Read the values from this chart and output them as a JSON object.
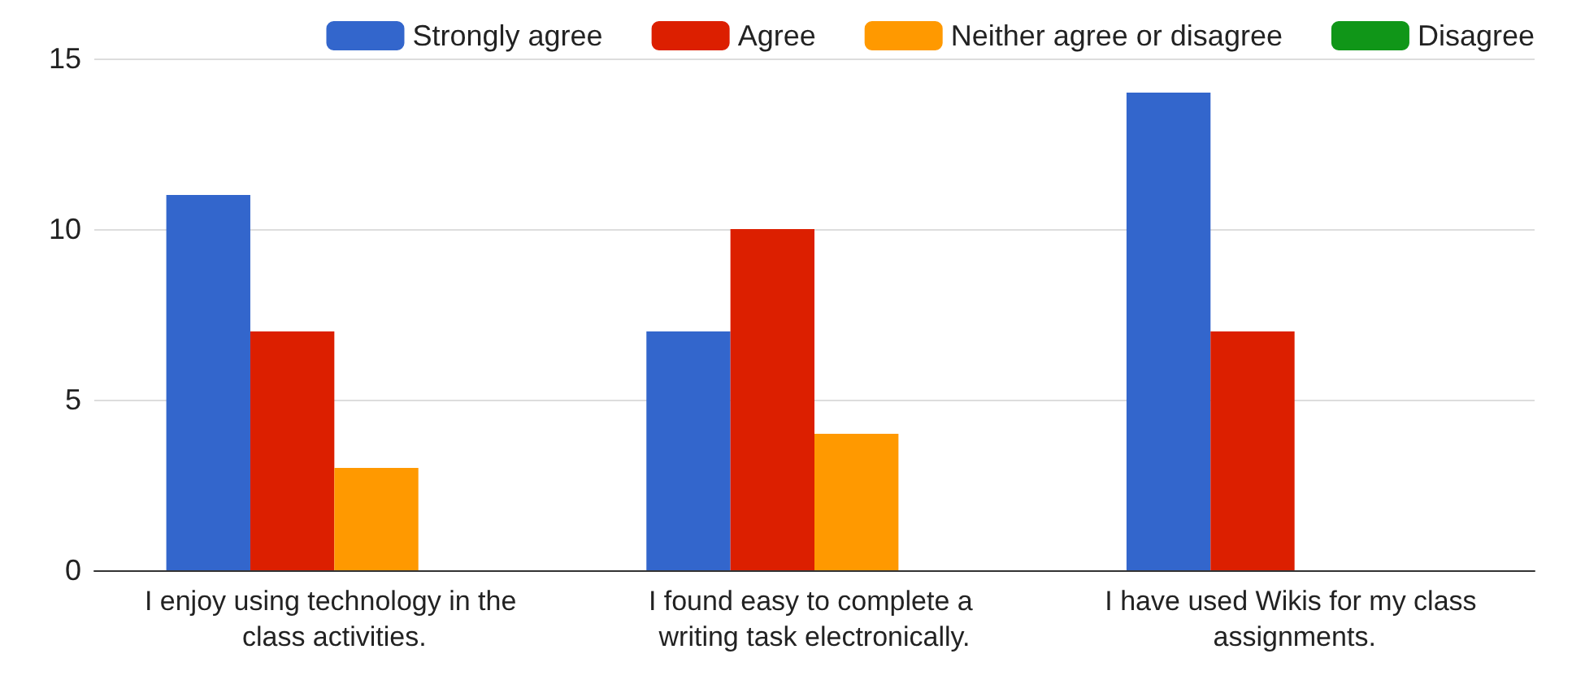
{
  "chart_data": {
    "type": "bar",
    "categories": [
      "I enjoy using technology in the class activities.",
      "I found easy to complete a writing task electronically.",
      "I have used Wikis for my class assignments."
    ],
    "series": [
      {
        "name": "Strongly agree",
        "color": "#3366cc",
        "values": [
          11,
          7,
          14
        ]
      },
      {
        "name": "Agree",
        "color": "#dc1f00",
        "values": [
          7,
          10,
          7
        ]
      },
      {
        "name": "Neither agree or disagree",
        "color": "#ff9900",
        "values": [
          3,
          4,
          0
        ]
      },
      {
        "name": "Disagree",
        "color": "#109618",
        "values": [
          0,
          0,
          0
        ]
      }
    ],
    "ylim": [
      0,
      15
    ],
    "yticks": [
      0,
      5,
      10,
      15
    ],
    "grid": "y",
    "legend": "top"
  }
}
